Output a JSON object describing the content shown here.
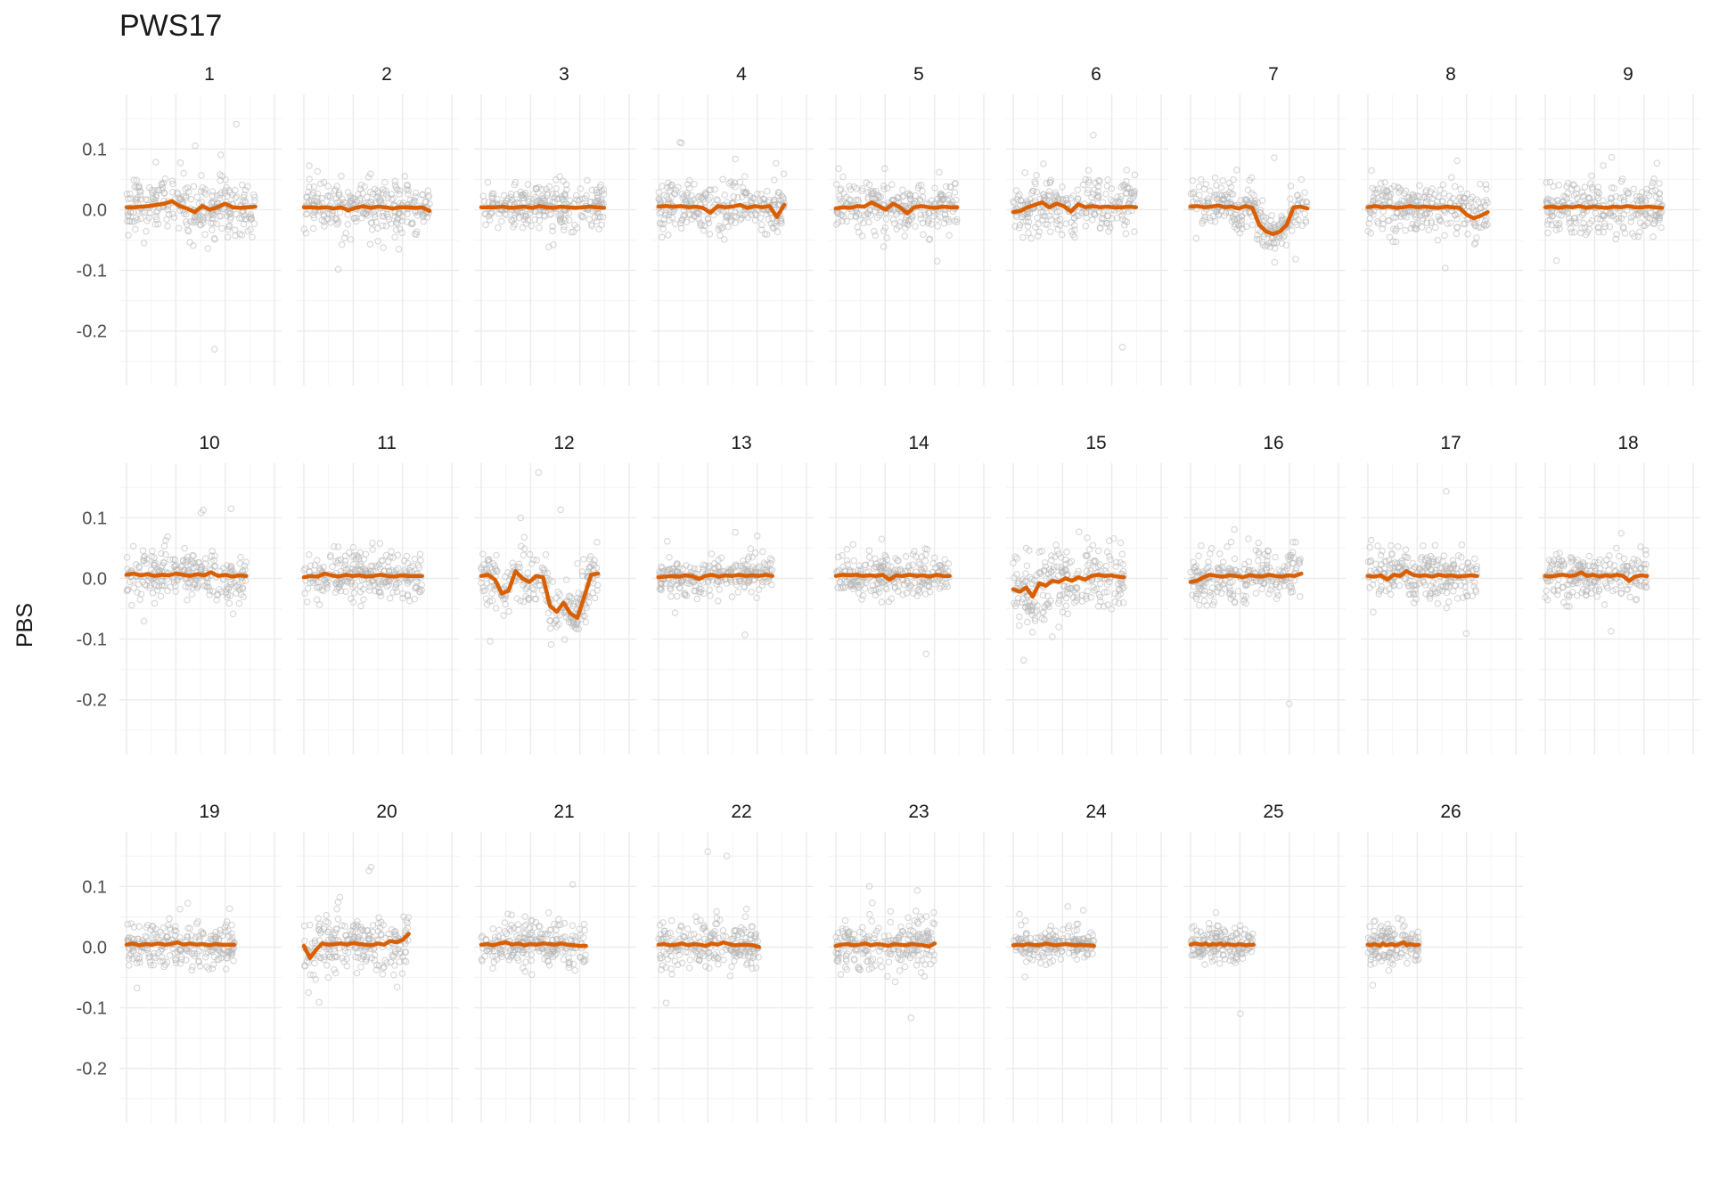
{
  "chart_data": {
    "type": "scatter",
    "title": "PWS17",
    "ylabel": "PBS",
    "xlabel": "",
    "ylim": [
      -0.29,
      0.19
    ],
    "yticks": [
      0.1,
      0.0,
      -0.1,
      -0.2
    ],
    "ytick_labels": [
      "0.1",
      "0.0",
      "-0.1",
      "-0.2"
    ],
    "grid": true,
    "layout": {
      "rows": 3,
      "cols": 9
    },
    "point_color": "#b5b5b5",
    "line_color": "#d95f02",
    "panels": [
      {
        "label": "1",
        "span": 0.86,
        "spread": 0.022,
        "smooth": [
          0.004,
          0.004,
          0.005,
          0.006,
          0.008,
          0.01,
          0.014,
          0.006,
          0.002,
          -0.004,
          0.006,
          0.0,
          0.004,
          0.01,
          0.004,
          0.003,
          0.004,
          0.005
        ]
      },
      {
        "label": "2",
        "span": 0.84,
        "spread": 0.02,
        "smooth": [
          0.004,
          0.004,
          0.003,
          0.004,
          0.002,
          0.004,
          -0.001,
          0.003,
          0.006,
          0.003,
          0.005,
          0.004,
          0.002,
          0.004,
          0.004,
          0.003,
          0.004,
          -0.002
        ]
      },
      {
        "label": "3",
        "span": 0.82,
        "spread": 0.018,
        "smooth": [
          0.004,
          0.004,
          0.004,
          0.005,
          0.003,
          0.004,
          0.005,
          0.003,
          0.006,
          0.004,
          0.003,
          0.005,
          0.004,
          0.003,
          0.004,
          0.005,
          0.004,
          0.003
        ]
      },
      {
        "label": "4",
        "span": 0.84,
        "spread": 0.022,
        "smooth": [
          0.005,
          0.006,
          0.005,
          0.006,
          0.004,
          0.005,
          0.003,
          -0.005,
          0.006,
          0.004,
          0.005,
          0.008,
          0.003,
          0.006,
          0.004,
          0.006,
          -0.012,
          0.008
        ]
      },
      {
        "label": "5",
        "span": 0.81,
        "spread": 0.02,
        "smooth": [
          0.002,
          0.004,
          0.003,
          0.006,
          0.005,
          0.012,
          0.006,
          0.0,
          0.01,
          0.004,
          -0.006,
          0.004,
          0.006,
          0.004,
          0.003,
          0.005,
          0.004,
          0.004
        ]
      },
      {
        "label": "6",
        "span": 0.82,
        "spread": 0.024,
        "smooth": [
          -0.004,
          -0.002,
          0.004,
          0.008,
          0.012,
          0.004,
          0.01,
          0.006,
          -0.003,
          0.009,
          0.004,
          0.006,
          0.004,
          0.005,
          0.004,
          0.004,
          0.005,
          0.004
        ]
      },
      {
        "label": "7",
        "span": 0.78,
        "spread": 0.018,
        "smooth": [
          0.005,
          0.006,
          0.004,
          0.005,
          0.007,
          0.004,
          0.005,
          0.002,
          0.006,
          0.003,
          -0.025,
          -0.036,
          -0.04,
          -0.036,
          -0.025,
          0.004,
          0.005,
          0.002
        ]
      },
      {
        "label": "8",
        "span": 0.8,
        "spread": 0.02,
        "smooth": [
          0.004,
          0.006,
          0.004,
          0.005,
          0.003,
          0.004,
          0.006,
          0.004,
          0.005,
          0.004,
          0.003,
          0.005,
          0.004,
          0.003,
          -0.008,
          -0.014,
          -0.01,
          -0.004
        ]
      },
      {
        "label": "9",
        "span": 0.78,
        "spread": 0.022,
        "smooth": [
          0.004,
          0.005,
          0.003,
          0.005,
          0.004,
          0.006,
          0.003,
          0.005,
          0.004,
          0.003,
          0.005,
          0.004,
          0.006,
          0.004,
          0.004,
          0.005,
          0.004,
          0.003
        ]
      },
      {
        "label": "10",
        "span": 0.8,
        "spread": 0.02,
        "smooth": [
          0.006,
          0.008,
          0.005,
          0.007,
          0.004,
          0.006,
          0.005,
          0.008,
          0.006,
          0.004,
          0.007,
          0.005,
          0.01,
          0.004,
          0.006,
          0.003,
          0.005,
          0.004
        ]
      },
      {
        "label": "11",
        "span": 0.79,
        "spread": 0.018,
        "smooth": [
          0.002,
          0.004,
          0.003,
          0.008,
          0.005,
          0.003,
          0.006,
          0.004,
          0.005,
          0.003,
          0.004,
          0.006,
          0.004,
          0.003,
          0.005,
          0.004,
          0.004,
          0.004
        ]
      },
      {
        "label": "12",
        "span": 0.78,
        "spread": 0.02,
        "smooth": [
          0.004,
          0.006,
          -0.002,
          -0.025,
          -0.02,
          0.012,
          0.0,
          -0.006,
          0.004,
          0.002,
          -0.045,
          -0.055,
          -0.04,
          -0.058,
          -0.065,
          -0.03,
          0.006,
          0.008
        ]
      },
      {
        "label": "13",
        "span": 0.76,
        "spread": 0.016,
        "smooth": [
          0.002,
          0.003,
          0.004,
          0.003,
          0.005,
          0.004,
          -0.001,
          0.004,
          0.006,
          0.003,
          0.005,
          0.004,
          0.006,
          0.004,
          0.005,
          0.004,
          0.006,
          0.004
        ]
      },
      {
        "label": "14",
        "span": 0.76,
        "spread": 0.018,
        "smooth": [
          0.004,
          0.006,
          0.005,
          0.006,
          0.004,
          0.005,
          0.004,
          0.006,
          -0.002,
          0.005,
          0.004,
          0.006,
          0.004,
          0.005,
          0.003,
          0.006,
          0.004,
          0.004
        ]
      },
      {
        "label": "15",
        "span": 0.74,
        "spread": 0.028,
        "smooth": [
          -0.018,
          -0.022,
          -0.015,
          -0.03,
          -0.008,
          -0.012,
          -0.004,
          -0.006,
          0.0,
          -0.004,
          0.002,
          -0.002,
          0.004,
          0.006,
          0.004,
          0.005,
          0.003,
          0.002
        ]
      },
      {
        "label": "16",
        "span": 0.74,
        "spread": 0.022,
        "smooth": [
          -0.006,
          -0.004,
          0.002,
          0.006,
          0.004,
          0.003,
          0.005,
          0.004,
          0.002,
          0.005,
          0.004,
          0.003,
          0.006,
          0.004,
          0.003,
          0.005,
          0.004,
          0.008
        ]
      },
      {
        "label": "17",
        "span": 0.73,
        "spread": 0.02,
        "smooth": [
          0.004,
          0.003,
          0.005,
          -0.002,
          0.006,
          0.004,
          0.012,
          0.006,
          0.004,
          0.005,
          0.003,
          0.006,
          0.004,
          0.005,
          0.003,
          0.004,
          0.005,
          0.004
        ]
      },
      {
        "label": "18",
        "span": 0.68,
        "spread": 0.018,
        "smooth": [
          0.004,
          0.003,
          0.005,
          0.006,
          0.004,
          0.005,
          0.01,
          0.004,
          0.006,
          0.003,
          0.005,
          0.004,
          0.006,
          0.004,
          -0.004,
          0.003,
          0.005,
          0.004
        ]
      },
      {
        "label": "19",
        "span": 0.72,
        "spread": 0.018,
        "smooth": [
          0.004,
          0.006,
          0.003,
          0.005,
          0.004,
          0.006,
          0.004,
          0.005,
          0.008,
          0.004,
          0.006,
          0.004,
          0.005,
          0.003,
          0.005,
          0.004,
          0.004,
          0.004
        ]
      },
      {
        "label": "20",
        "span": 0.7,
        "spread": 0.024,
        "smooth": [
          0.002,
          -0.018,
          -0.004,
          0.006,
          0.004,
          0.005,
          0.006,
          0.004,
          0.007,
          0.005,
          0.004,
          0.003,
          0.006,
          0.004,
          0.01,
          0.008,
          0.012,
          0.022
        ]
      },
      {
        "label": "21",
        "span": 0.7,
        "spread": 0.018,
        "smooth": [
          0.004,
          0.005,
          0.003,
          0.006,
          0.008,
          0.004,
          0.006,
          0.003,
          0.005,
          0.004,
          0.006,
          0.005,
          0.004,
          0.006,
          0.004,
          0.003,
          0.002,
          0.002
        ]
      },
      {
        "label": "22",
        "span": 0.67,
        "spread": 0.018,
        "smooth": [
          0.004,
          0.005,
          0.003,
          0.004,
          0.006,
          0.003,
          0.005,
          0.004,
          0.002,
          0.006,
          0.004,
          0.008,
          0.005,
          0.003,
          0.004,
          0.004,
          0.003,
          0.0
        ]
      },
      {
        "label": "23",
        "span": 0.66,
        "spread": 0.02,
        "smooth": [
          0.002,
          0.004,
          0.005,
          0.003,
          0.004,
          0.006,
          0.003,
          0.005,
          0.004,
          0.002,
          0.005,
          0.004,
          0.003,
          0.005,
          0.004,
          0.003,
          0.001,
          0.006
        ]
      },
      {
        "label": "24",
        "span": 0.54,
        "spread": 0.014,
        "smooth": [
          0.003,
          0.004,
          0.003,
          0.005,
          0.004,
          0.003,
          0.004,
          0.006,
          0.004,
          0.003,
          0.004,
          0.005,
          0.004,
          0.003,
          0.004,
          0.003,
          0.003,
          0.002
        ]
      },
      {
        "label": "25",
        "span": 0.42,
        "spread": 0.016,
        "smooth": [
          0.004,
          0.006,
          0.005,
          0.004,
          0.006,
          0.003,
          0.005,
          0.004,
          0.006,
          0.003,
          0.005,
          0.004,
          0.003,
          0.005,
          0.004,
          0.003,
          0.004,
          0.004
        ]
      },
      {
        "label": "26",
        "span": 0.34,
        "spread": 0.016,
        "smooth": [
          0.004,
          0.003,
          0.005,
          0.004,
          0.002,
          0.006,
          0.003,
          0.004,
          0.005,
          0.003,
          0.004,
          0.006,
          0.008,
          0.003,
          0.005,
          0.004,
          0.003,
          0.004
        ]
      }
    ]
  }
}
